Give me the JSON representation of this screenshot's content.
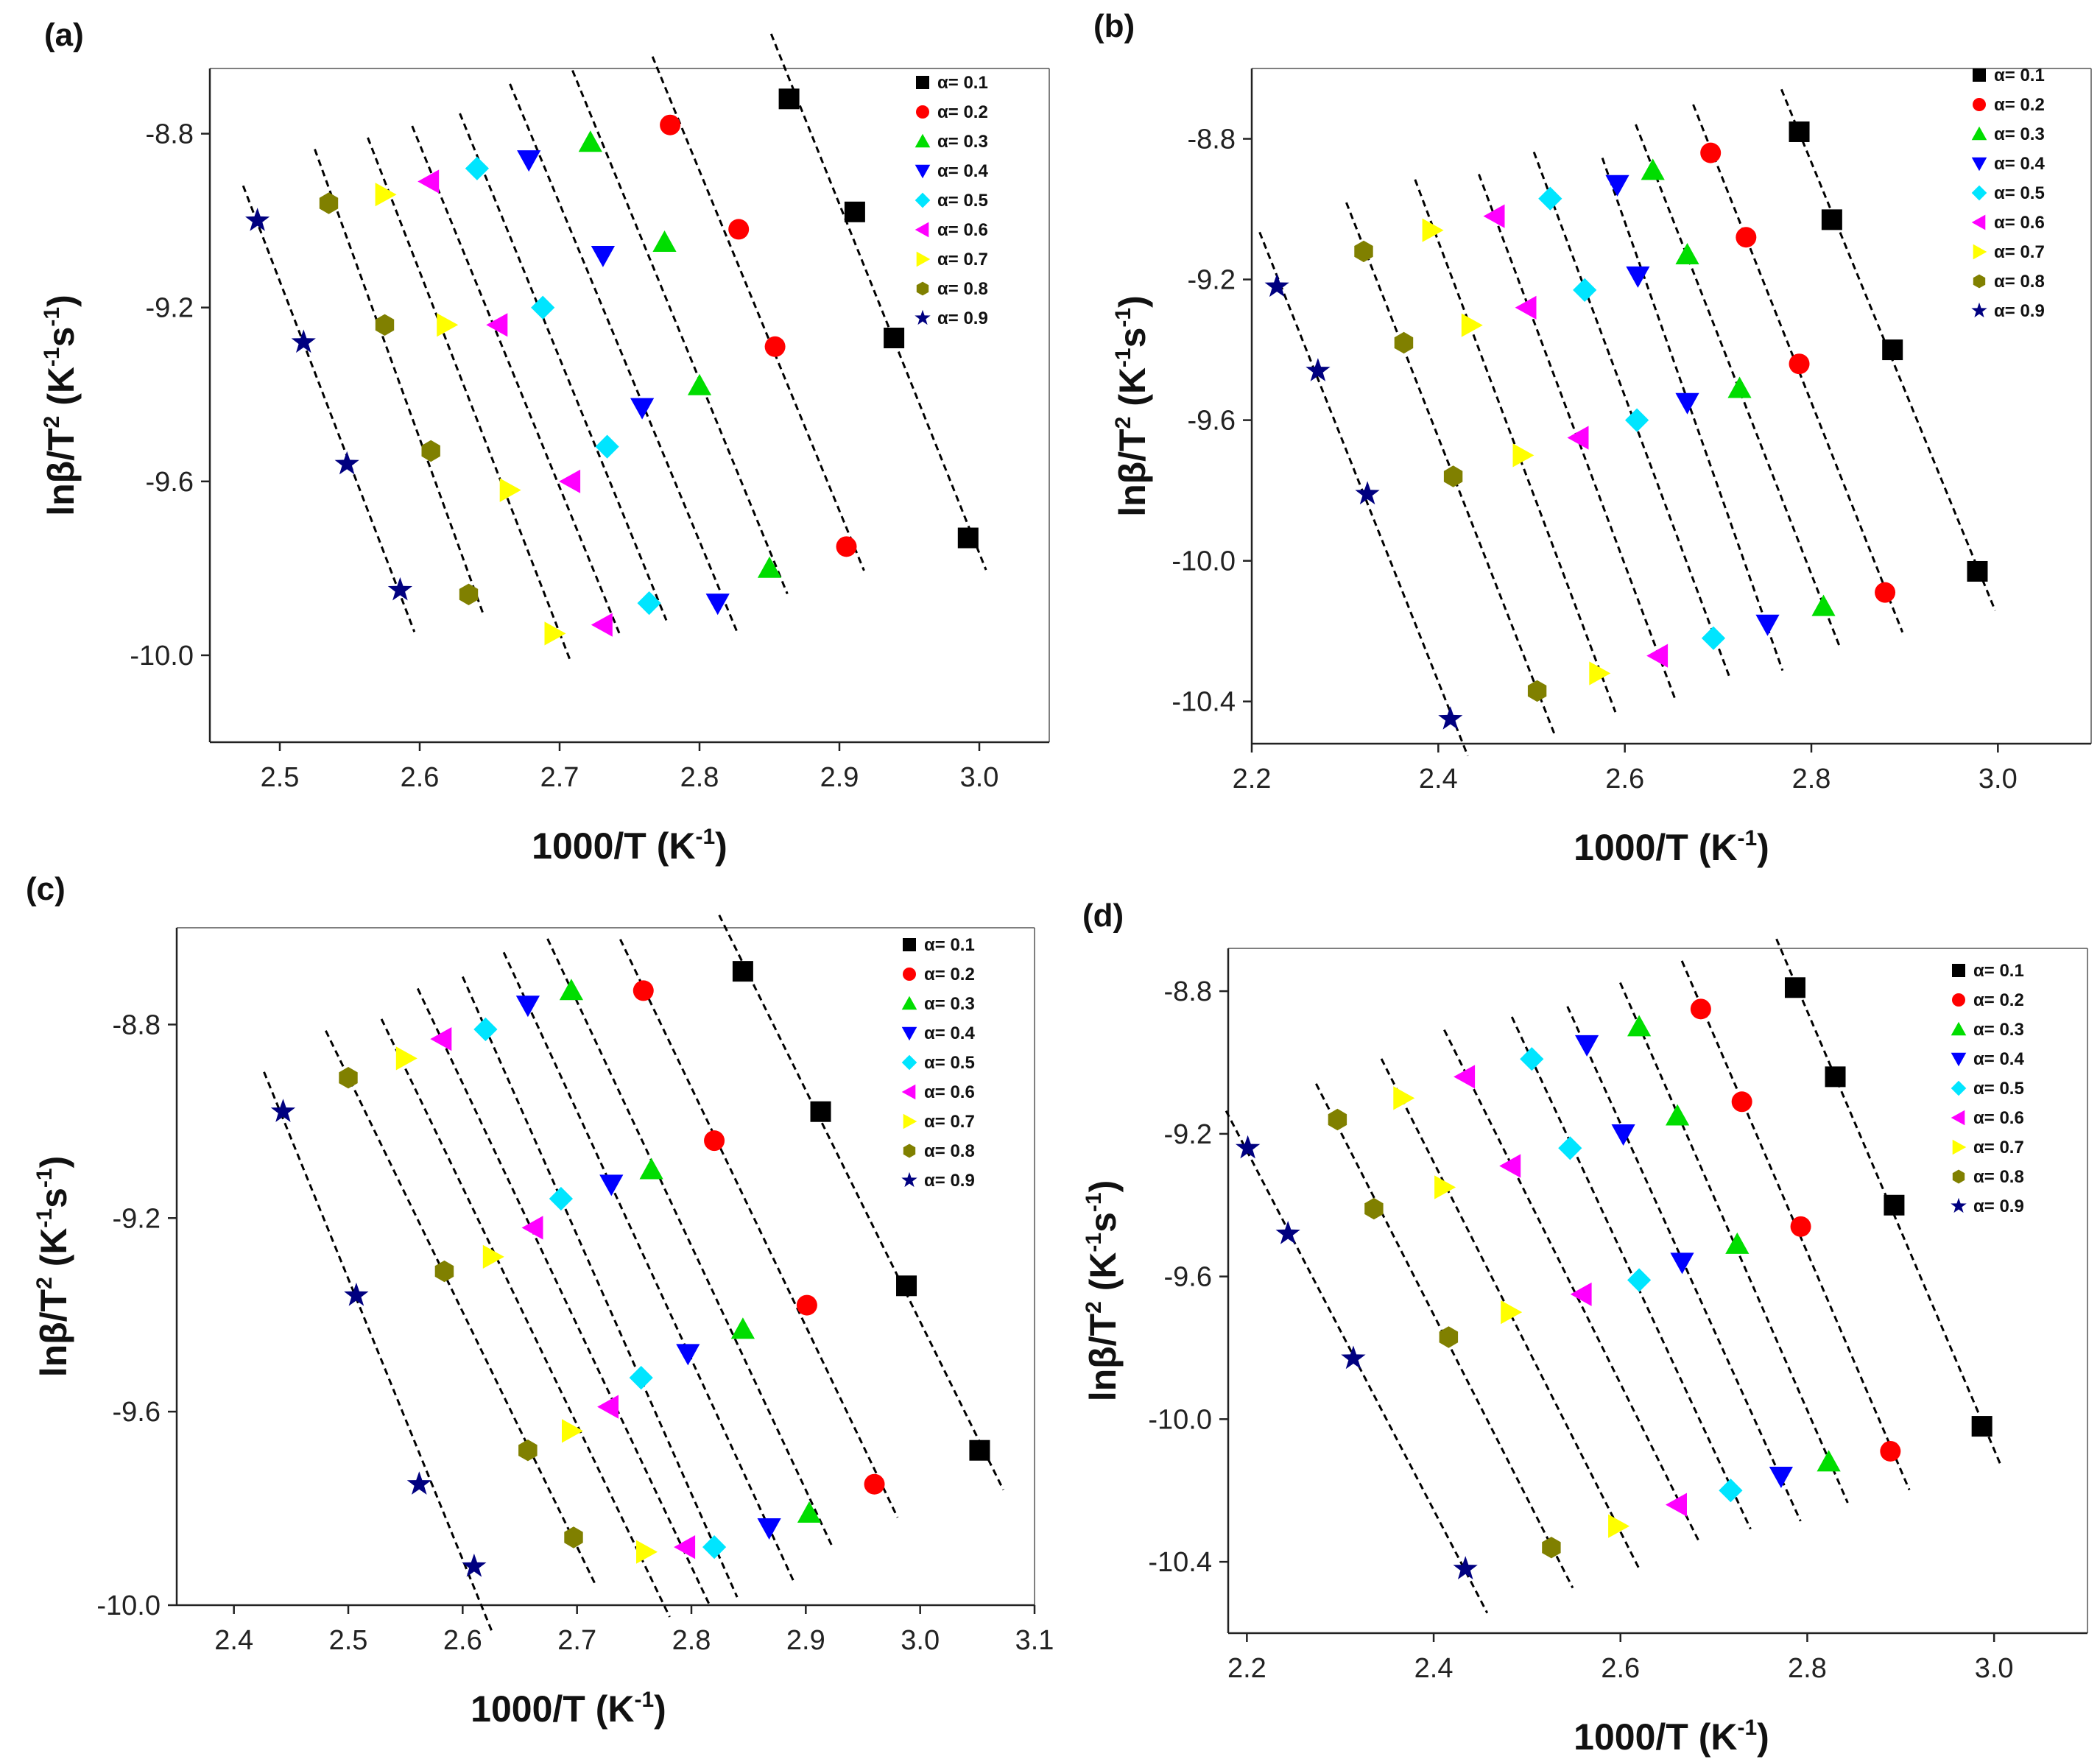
{
  "figure": {
    "legend_labels": [
      "α= 0.1",
      "α= 0.2",
      "α= 0.3",
      "α= 0.4",
      "α= 0.5",
      "α= 0.6",
      "α= 0.7",
      "α= 0.8",
      "α= 0.9"
    ],
    "series_colors": [
      "#000000",
      "#ff0000",
      "#00dd00",
      "#0000ff",
      "#00e5ff",
      "#ff00ff",
      "#ffff00",
      "#808000",
      "#000080"
    ],
    "series_markers": [
      "square",
      "circle",
      "triangle-up",
      "triangle-down",
      "diamond",
      "triangle-left",
      "triangle-right",
      "hexagon",
      "star"
    ],
    "fit_line_color": "#000000"
  },
  "chart_data": [
    {
      "panel_label": "(a)",
      "type": "scatter",
      "xlabel": "1000/T (K-1)",
      "ylabel": "lnβ/T2 (K-1s-1)",
      "xlim": [
        2.45,
        3.05
      ],
      "ylim": [
        -10.2,
        -8.65
      ],
      "xticks": [
        2.5,
        2.6,
        2.7,
        2.8,
        2.9,
        3.0
      ],
      "yticks": [
        -8.8,
        -9.2,
        -9.6,
        -10.0
      ],
      "xtick_labels": [
        "2.5",
        "2.6",
        "2.7",
        "2.8",
        "2.9",
        "3.0"
      ],
      "ytick_labels": [
        "-8.8",
        "-9.2",
        "-9.6",
        "-10.0"
      ],
      "series": [
        {
          "name": "α= 0.1",
          "x": [
            2.864,
            2.911,
            2.939,
            2.992
          ],
          "y": [
            -8.72,
            -8.98,
            -9.27,
            -9.73
          ]
        },
        {
          "name": "α= 0.2",
          "x": [
            2.779,
            2.828,
            2.854,
            2.905
          ],
          "y": [
            -8.78,
            -9.02,
            -9.29,
            -9.75
          ]
        },
        {
          "name": "α= 0.3",
          "x": [
            2.722,
            2.775,
            2.8,
            2.85
          ],
          "y": [
            -8.82,
            -9.05,
            -9.38,
            -9.8
          ]
        },
        {
          "name": "α= 0.4",
          "x": [
            2.678,
            2.731,
            2.759,
            2.813
          ],
          "y": [
            -8.86,
            -9.08,
            -9.43,
            -9.88
          ]
        },
        {
          "name": "α= 0.5",
          "x": [
            2.641,
            2.688,
            2.734,
            2.764
          ],
          "y": [
            -8.88,
            -9.2,
            -9.52,
            -9.88
          ]
        },
        {
          "name": "α= 0.6",
          "x": [
            2.607,
            2.656,
            2.708,
            2.731
          ],
          "y": [
            -8.91,
            -9.24,
            -9.6,
            -9.93
          ]
        },
        {
          "name": "α= 0.7",
          "x": [
            2.575,
            2.619,
            2.664,
            2.696
          ],
          "y": [
            -8.94,
            -9.24,
            -9.62,
            -9.95
          ]
        },
        {
          "name": "α= 0.8",
          "x": [
            2.535,
            2.575,
            2.608,
            2.635
          ],
          "y": [
            -8.96,
            -9.24,
            -9.53,
            -9.86
          ]
        },
        {
          "name": "α= 0.9",
          "x": [
            2.484,
            2.517,
            2.548,
            2.586
          ],
          "y": [
            -9.0,
            -9.28,
            -9.56,
            -9.85
          ]
        }
      ]
    },
    {
      "panel_label": "(b)",
      "type": "scatter",
      "xlabel": "1000/T (K-1)",
      "ylabel": "lnβ/T2 (K-1s-1)",
      "xlim": [
        2.2,
        3.1
      ],
      "ylim": [
        -10.52,
        -8.6
      ],
      "xticks": [
        2.2,
        2.4,
        2.6,
        2.8,
        3.0
      ],
      "yticks": [
        -8.8,
        -9.2,
        -9.6,
        -10.0,
        -10.4
      ],
      "xtick_labels": [
        "2.2",
        "2.4",
        "2.6",
        "2.8",
        "3.0"
      ],
      "ytick_labels": [
        "-8.8",
        "-9.2",
        "-9.6",
        "-10.0",
        "-10.4"
      ],
      "series": [
        {
          "name": "α= 0.1",
          "x": [
            2.787,
            2.822,
            2.887,
            2.978
          ],
          "y": [
            -8.78,
            -9.03,
            -9.4,
            -10.03
          ]
        },
        {
          "name": "α= 0.2",
          "x": [
            2.692,
            2.73,
            2.787,
            2.879
          ],
          "y": [
            -8.84,
            -9.08,
            -9.44,
            -10.09
          ]
        },
        {
          "name": "α= 0.3",
          "x": [
            2.63,
            2.667,
            2.723,
            2.813
          ],
          "y": [
            -8.89,
            -9.13,
            -9.51,
            -10.13
          ]
        },
        {
          "name": "α= 0.4",
          "x": [
            2.592,
            2.614,
            2.667,
            2.753
          ],
          "y": [
            -8.93,
            -9.19,
            -9.55,
            -10.18
          ]
        },
        {
          "name": "α= 0.5",
          "x": [
            2.52,
            2.557,
            2.613,
            2.695
          ],
          "y": [
            -8.97,
            -9.23,
            -9.6,
            -10.22
          ]
        },
        {
          "name": "α= 0.6",
          "x": [
            2.461,
            2.495,
            2.551,
            2.636
          ],
          "y": [
            -9.02,
            -9.28,
            -9.65,
            -10.27
          ]
        },
        {
          "name": "α= 0.7",
          "x": [
            2.393,
            2.435,
            2.49,
            2.572
          ],
          "y": [
            -9.06,
            -9.33,
            -9.7,
            -10.32
          ]
        },
        {
          "name": "α= 0.8",
          "x": [
            2.32,
            2.363,
            2.416,
            2.506
          ],
          "y": [
            -9.12,
            -9.38,
            -9.76,
            -10.37
          ]
        },
        {
          "name": "α= 0.9",
          "x": [
            2.227,
            2.271,
            2.324,
            2.413
          ],
          "y": [
            -9.22,
            -9.46,
            -9.81,
            -10.45
          ]
        }
      ]
    },
    {
      "panel_label": "(c)",
      "type": "scatter",
      "xlabel": "1000/T (K-1)",
      "ylabel": "lnβ/T2 (K-1s-1)",
      "xlim": [
        2.35,
        3.1
      ],
      "ylim": [
        -10.0,
        -8.6
      ],
      "xticks": [
        2.4,
        2.5,
        2.6,
        2.7,
        2.8,
        2.9,
        3.0,
        3.1
      ],
      "yticks": [
        -8.8,
        -9.2,
        -9.6,
        -10.0
      ],
      "xtick_labels": [
        "2.4",
        "2.5",
        "2.6",
        "2.7",
        "2.8",
        "2.9",
        "3.0",
        "3.1"
      ],
      "ytick_labels": [
        "-8.8",
        "-9.2",
        "-9.6",
        "-10.0"
      ],
      "series": [
        {
          "name": "α= 0.1",
          "x": [
            2.845,
            2.913,
            2.988,
            3.052
          ],
          "y": [
            -8.69,
            -8.98,
            -9.34,
            -9.68
          ]
        },
        {
          "name": "α= 0.2",
          "x": [
            2.758,
            2.82,
            2.901,
            2.96
          ],
          "y": [
            -8.73,
            -9.04,
            -9.38,
            -9.75
          ]
        },
        {
          "name": "α= 0.3",
          "x": [
            2.695,
            2.765,
            2.845,
            2.903
          ],
          "y": [
            -8.73,
            -9.1,
            -9.43,
            -9.81
          ]
        },
        {
          "name": "α= 0.4",
          "x": [
            2.657,
            2.73,
            2.797,
            2.868
          ],
          "y": [
            -8.76,
            -9.13,
            -9.48,
            -9.84
          ]
        },
        {
          "name": "α= 0.5",
          "x": [
            2.62,
            2.686,
            2.756,
            2.82
          ],
          "y": [
            -8.81,
            -9.16,
            -9.53,
            -9.88
          ]
        },
        {
          "name": "α= 0.6",
          "x": [
            2.582,
            2.662,
            2.728,
            2.795
          ],
          "y": [
            -8.83,
            -9.22,
            -9.59,
            -9.88
          ]
        },
        {
          "name": "α= 0.7",
          "x": [
            2.55,
            2.626,
            2.695,
            2.76
          ],
          "y": [
            -8.87,
            -9.28,
            -9.64,
            -9.89
          ]
        },
        {
          "name": "α= 0.8",
          "x": [
            2.5,
            2.584,
            2.657,
            2.697
          ],
          "y": [
            -8.91,
            -9.31,
            -9.68,
            -9.86
          ]
        },
        {
          "name": "α= 0.9",
          "x": [
            2.443,
            2.507,
            2.562,
            2.61
          ],
          "y": [
            -8.98,
            -9.36,
            -9.75,
            -9.92
          ]
        }
      ]
    },
    {
      "panel_label": "(d)",
      "type": "scatter",
      "xlabel": "1000/T (K-1)",
      "ylabel": "lnβ/T2 (K-1s-1)",
      "xlim": [
        2.18,
        3.1
      ],
      "ylim": [
        -10.6,
        -8.68
      ],
      "xticks": [
        2.2,
        2.4,
        2.6,
        2.8,
        3.0
      ],
      "yticks": [
        -8.8,
        -9.2,
        -9.6,
        -10.0,
        -10.4
      ],
      "xtick_labels": [
        "2.2",
        "2.4",
        "2.6",
        "2.8",
        "3.0"
      ],
      "ytick_labels": [
        "-8.8",
        "-9.2",
        "-9.6",
        "-10.0",
        "-10.4"
      ],
      "series": [
        {
          "name": "α= 0.1",
          "x": [
            2.787,
            2.83,
            2.893,
            2.987
          ],
          "y": [
            -8.79,
            -9.04,
            -9.4,
            -10.02
          ]
        },
        {
          "name": "α= 0.2",
          "x": [
            2.686,
            2.73,
            2.793,
            2.889
          ],
          "y": [
            -8.85,
            -9.11,
            -9.46,
            -10.09
          ]
        },
        {
          "name": "α= 0.3",
          "x": [
            2.62,
            2.661,
            2.725,
            2.823
          ],
          "y": [
            -8.9,
            -9.15,
            -9.51,
            -10.12
          ]
        },
        {
          "name": "α= 0.4",
          "x": [
            2.564,
            2.603,
            2.666,
            2.772
          ],
          "y": [
            -8.95,
            -9.2,
            -9.56,
            -10.16
          ]
        },
        {
          "name": "α= 0.5",
          "x": [
            2.505,
            2.546,
            2.62,
            2.718
          ],
          "y": [
            -8.99,
            -9.24,
            -9.61,
            -10.2
          ]
        },
        {
          "name": "α= 0.6",
          "x": [
            2.434,
            2.483,
            2.559,
            2.661
          ],
          "y": [
            -9.04,
            -9.29,
            -9.65,
            -10.24
          ]
        },
        {
          "name": "α= 0.7",
          "x": [
            2.367,
            2.411,
            2.482,
            2.597
          ],
          "y": [
            -9.1,
            -9.35,
            -9.7,
            -10.3
          ]
        },
        {
          "name": "α= 0.8",
          "x": [
            2.297,
            2.336,
            2.416,
            2.526
          ],
          "y": [
            -9.16,
            -9.41,
            -9.77,
            -10.36
          ]
        },
        {
          "name": "α= 0.9",
          "x": [
            2.201,
            2.244,
            2.314,
            2.434
          ],
          "y": [
            -9.24,
            -9.48,
            -9.83,
            -10.42
          ]
        }
      ]
    }
  ]
}
